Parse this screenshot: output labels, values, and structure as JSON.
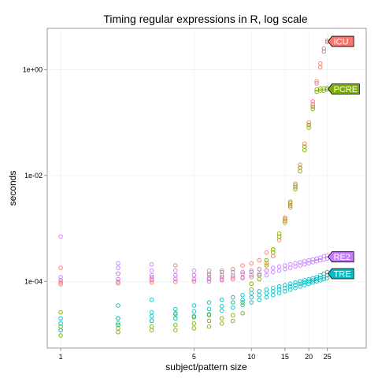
{
  "chart_data": {
    "type": "scatter",
    "title": "Timing regular expressions in R, log scale",
    "xlabel": "subject/pattern size",
    "ylabel": "seconds",
    "x_scale": "log",
    "y_scale": "log",
    "xlim": [
      0.85,
      40
    ],
    "ylim": [
      5.5e-06,
      6
    ],
    "x_ticks": [
      1,
      5,
      10,
      15,
      20,
      25
    ],
    "y_ticks": [
      {
        "value": 0.0001,
        "label": "1e-04"
      },
      {
        "value": 0.01,
        "label": "1e-02"
      },
      {
        "value": 1,
        "label": "1e+00"
      }
    ],
    "grid": true,
    "legend": "direct labels at right end of each series",
    "series": [
      {
        "name": "ICU",
        "color": "#F8766D",
        "points": [
          [
            1,
            8.8e-05
          ],
          [
            1,
            9.5e-05
          ],
          [
            1,
            0.000105
          ],
          [
            1,
            0.00018
          ],
          [
            2,
            9.2e-05
          ],
          [
            2,
            9.8e-05
          ],
          [
            2,
            0.00011
          ],
          [
            2,
            0.00014
          ],
          [
            3,
            9.5e-05
          ],
          [
            3,
            0.000105
          ],
          [
            3,
            0.00012
          ],
          [
            4,
            9.8e-05
          ],
          [
            4,
            0.00011
          ],
          [
            4,
            0.00013
          ],
          [
            4,
            0.0002
          ],
          [
            5,
            0.0001
          ],
          [
            5,
            0.00011
          ],
          [
            5,
            0.00013
          ],
          [
            6,
            0.0001
          ],
          [
            6,
            0.000115
          ],
          [
            6,
            0.00014
          ],
          [
            7,
            0.000105
          ],
          [
            7,
            0.00012
          ],
          [
            7,
            0.00015
          ],
          [
            8,
            0.00011
          ],
          [
            8,
            0.00013
          ],
          [
            8,
            0.00017
          ],
          [
            9,
            0.000115
          ],
          [
            9,
            0.00014
          ],
          [
            9,
            0.0002
          ],
          [
            10,
            0.00012
          ],
          [
            10,
            0.00015
          ],
          [
            10,
            0.00022
          ],
          [
            11,
            0.00013
          ],
          [
            11,
            0.00017
          ],
          [
            11,
            0.00025
          ],
          [
            12,
            0.00016
          ],
          [
            12,
            0.00022
          ],
          [
            12,
            0.00035
          ],
          [
            13,
            0.0003
          ],
          [
            13,
            0.0004
          ],
          [
            14,
            0.0006
          ],
          [
            14,
            0.0007
          ],
          [
            15,
            0.0014
          ],
          [
            15,
            0.0016
          ],
          [
            16,
            0.0025
          ],
          [
            16,
            0.003
          ],
          [
            17,
            0.006
          ],
          [
            17,
            0.007
          ],
          [
            18,
            0.014
          ],
          [
            18,
            0.016
          ],
          [
            19,
            0.035
          ],
          [
            19,
            0.04
          ],
          [
            20,
            0.09
          ],
          [
            20,
            0.1
          ],
          [
            21,
            0.22
          ],
          [
            21,
            0.25
          ],
          [
            22,
            0.55
          ],
          [
            22,
            0.6
          ],
          [
            23,
            1.1
          ],
          [
            23,
            1.3
          ],
          [
            24,
            2.2
          ],
          [
            24,
            2.5
          ],
          [
            25,
            3.3
          ],
          [
            25,
            3.5
          ]
        ]
      },
      {
        "name": "PCRE",
        "color": "#7CAE00",
        "points": [
          [
            1,
            9.5e-06
          ],
          [
            1,
            1.2e-05
          ],
          [
            1,
            1.4e-05
          ],
          [
            1,
            2.6e-05
          ],
          [
            2,
            1.1e-05
          ],
          [
            2,
            1.3e-05
          ],
          [
            2,
            1.6e-05
          ],
          [
            2,
            2e-05
          ],
          [
            3,
            1.2e-05
          ],
          [
            3,
            1.4e-05
          ],
          [
            3,
            1.8e-05
          ],
          [
            4,
            1.2e-05
          ],
          [
            4,
            1.5e-05
          ],
          [
            4,
            2e-05
          ],
          [
            4,
            2.5e-05
          ],
          [
            5,
            1.3e-05
          ],
          [
            5,
            1.6e-05
          ],
          [
            5,
            2.1e-05
          ],
          [
            6,
            1.4e-05
          ],
          [
            6,
            1.8e-05
          ],
          [
            6,
            2.3e-05
          ],
          [
            7,
            1.6e-05
          ],
          [
            7,
            2e-05
          ],
          [
            8,
            1.8e-05
          ],
          [
            8,
            2.3e-05
          ],
          [
            9,
            2.5e-05
          ],
          [
            9,
            4e-05
          ],
          [
            10,
            7e-05
          ],
          [
            10,
            9e-05
          ],
          [
            11,
            0.00011
          ],
          [
            11,
            0.00013
          ],
          [
            12,
            0.0002
          ],
          [
            12,
            0.00025
          ],
          [
            13,
            0.00035
          ],
          [
            13,
            0.0004
          ],
          [
            14,
            0.0007
          ],
          [
            14,
            0.0008
          ],
          [
            15,
            0.0013
          ],
          [
            15,
            0.0015
          ],
          [
            16,
            0.0027
          ],
          [
            16,
            0.0032
          ],
          [
            17,
            0.0055
          ],
          [
            17,
            0.0065
          ],
          [
            18,
            0.012
          ],
          [
            18,
            0.014
          ],
          [
            19,
            0.03
          ],
          [
            19,
            0.035
          ],
          [
            20,
            0.08
          ],
          [
            20,
            0.09
          ],
          [
            21,
            0.18
          ],
          [
            21,
            0.2
          ],
          [
            22,
            0.38
          ],
          [
            22,
            0.42
          ],
          [
            23,
            0.4
          ],
          [
            23,
            0.44
          ],
          [
            24,
            0.4
          ],
          [
            24,
            0.44
          ],
          [
            25,
            0.42
          ],
          [
            25,
            0.45
          ]
        ]
      },
      {
        "name": "RE2",
        "color": "#C77CFF",
        "points": [
          [
            1,
            0.0007
          ],
          [
            1,
            0.00012
          ],
          [
            1,
            0.000105
          ],
          [
            2,
            0.00022
          ],
          [
            2,
            0.00018
          ],
          [
            2,
            0.00014
          ],
          [
            2,
            0.00011
          ],
          [
            3,
            0.00021
          ],
          [
            3,
            0.00016
          ],
          [
            3,
            0.00013
          ],
          [
            3,
            0.00011
          ],
          [
            4,
            0.00016
          ],
          [
            4,
            0.00013
          ],
          [
            4,
            0.00011
          ],
          [
            5,
            0.00016
          ],
          [
            5,
            0.00013
          ],
          [
            5,
            0.00011
          ],
          [
            6,
            0.00016
          ],
          [
            6,
            0.00013
          ],
          [
            6,
            0.00011
          ],
          [
            7,
            0.00016
          ],
          [
            7,
            0.00013
          ],
          [
            7,
            0.00011
          ],
          [
            8,
            0.00015
          ],
          [
            8,
            0.00012
          ],
          [
            9,
            0.00015
          ],
          [
            9,
            0.00012
          ],
          [
            10,
            0.00016
          ],
          [
            10,
            0.00013
          ],
          [
            11,
            0.00017
          ],
          [
            11,
            0.00014
          ],
          [
            12,
            0.00016
          ],
          [
            12,
            0.00013
          ],
          [
            13,
            0.00018
          ],
          [
            13,
            0.00015
          ],
          [
            14,
            0.00019
          ],
          [
            14,
            0.00016
          ],
          [
            15,
            0.0002
          ],
          [
            15,
            0.00017
          ],
          [
            16,
            0.00021
          ],
          [
            16,
            0.00018
          ],
          [
            17,
            0.00022
          ],
          [
            17,
            0.00019
          ],
          [
            18,
            0.00023
          ],
          [
            18,
            0.0002
          ],
          [
            19,
            0.00024
          ],
          [
            19,
            0.00021
          ],
          [
            20,
            0.00025
          ],
          [
            20,
            0.00022
          ],
          [
            21,
            0.00026
          ],
          [
            21,
            0.00023
          ],
          [
            22,
            0.00027
          ],
          [
            22,
            0.00024
          ],
          [
            23,
            0.00028
          ],
          [
            23,
            0.00025
          ],
          [
            24,
            0.0003
          ],
          [
            24,
            0.00026
          ],
          [
            25,
            0.00031
          ],
          [
            25,
            0.00027
          ]
        ]
      },
      {
        "name": "TRE",
        "color": "#00BFC4",
        "points": [
          [
            1,
            1.2e-05
          ],
          [
            1,
            1.6e-05
          ],
          [
            1,
            2e-05
          ],
          [
            2,
            1.5e-05
          ],
          [
            2,
            2e-05
          ],
          [
            2,
            3.5e-05
          ],
          [
            3,
            1.8e-05
          ],
          [
            3,
            2.2e-05
          ],
          [
            3,
            2.6e-05
          ],
          [
            3,
            4.5e-05
          ],
          [
            4,
            2e-05
          ],
          [
            4,
            2.4e-05
          ],
          [
            4,
            3e-05
          ],
          [
            5,
            2.2e-05
          ],
          [
            5,
            2.7e-05
          ],
          [
            5,
            3.5e-05
          ],
          [
            6,
            2.4e-05
          ],
          [
            6,
            3e-05
          ],
          [
            6,
            4e-05
          ],
          [
            7,
            2.8e-05
          ],
          [
            7,
            3.4e-05
          ],
          [
            7,
            4.5e-05
          ],
          [
            8,
            3.2e-05
          ],
          [
            8,
            4e-05
          ],
          [
            8,
            5e-05
          ],
          [
            9,
            3.6e-05
          ],
          [
            9,
            4.5e-05
          ],
          [
            9,
            5.5e-05
          ],
          [
            10,
            4e-05
          ],
          [
            10,
            5e-05
          ],
          [
            10,
            6e-05
          ],
          [
            11,
            4.5e-05
          ],
          [
            11,
            5.5e-05
          ],
          [
            11,
            6.5e-05
          ],
          [
            12,
            5e-05
          ],
          [
            12,
            6e-05
          ],
          [
            12,
            7e-05
          ],
          [
            13,
            5.5e-05
          ],
          [
            13,
            6.5e-05
          ],
          [
            13,
            7.5e-05
          ],
          [
            14,
            6e-05
          ],
          [
            14,
            7e-05
          ],
          [
            14,
            8e-05
          ],
          [
            15,
            6.5e-05
          ],
          [
            15,
            7.5e-05
          ],
          [
            15,
            8.5e-05
          ],
          [
            16,
            7e-05
          ],
          [
            16,
            8e-05
          ],
          [
            16,
            9e-05
          ],
          [
            17,
            7.5e-05
          ],
          [
            17,
            8.5e-05
          ],
          [
            17,
            9.5e-05
          ],
          [
            18,
            8e-05
          ],
          [
            18,
            9e-05
          ],
          [
            18,
            0.0001
          ],
          [
            19,
            8.5e-05
          ],
          [
            19,
            9.5e-05
          ],
          [
            19,
            0.000105
          ],
          [
            20,
            9e-05
          ],
          [
            20,
            0.0001
          ],
          [
            20,
            0.00011
          ],
          [
            21,
            9.5e-05
          ],
          [
            21,
            0.000105
          ],
          [
            21,
            0.000115
          ],
          [
            22,
            0.0001
          ],
          [
            22,
            0.00011
          ],
          [
            22,
            0.00012
          ],
          [
            23,
            0.000105
          ],
          [
            23,
            0.000115
          ],
          [
            23,
            0.00013
          ],
          [
            24,
            0.00011
          ],
          [
            24,
            0.00012
          ],
          [
            24,
            0.00014
          ],
          [
            25,
            0.000115
          ],
          [
            25,
            0.00013
          ],
          [
            25,
            0.00015
          ]
        ]
      }
    ],
    "labels": [
      {
        "series": "ICU",
        "text": "ICU",
        "x": 25,
        "y": 3.4
      },
      {
        "series": "PCRE",
        "text": "PCRE",
        "x": 25,
        "y": 0.43
      },
      {
        "series": "RE2",
        "text": "RE2",
        "x": 25,
        "y": 0.00029
      },
      {
        "series": "TRE",
        "text": "TRE",
        "x": 25,
        "y": 0.00014
      }
    ]
  }
}
